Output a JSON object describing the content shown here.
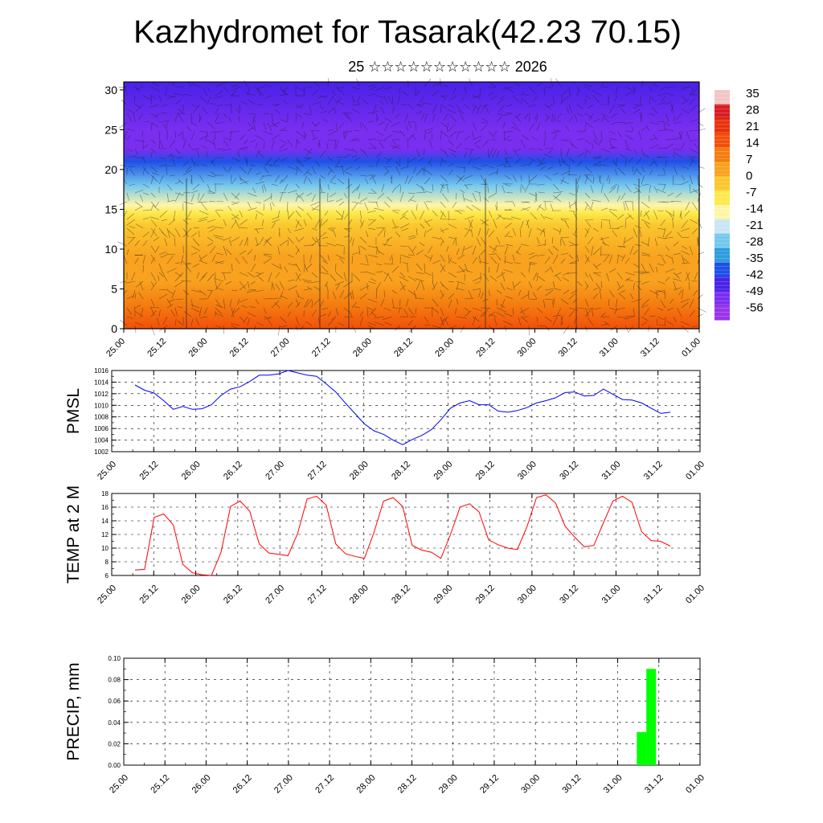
{
  "title": "Kazhydromet for Tasarak(42.23 70.15)",
  "subtitle": "25 ☆☆☆☆☆☆☆☆☆☆☆ 2026",
  "x_ticks": [
    "25.00",
    "25.12",
    "26.00",
    "26.12",
    "27.00",
    "27.12",
    "28.00",
    "28.12",
    "29.00",
    "29.12",
    "30.00",
    "30.12",
    "31.00",
    "31.12",
    "01.00"
  ],
  "chart_data": [
    {
      "type": "heatmap",
      "name": "vertical-temperature-wind",
      "xlabel": "",
      "ylabel": "",
      "ylim": [
        0,
        31
      ],
      "y_ticks": [
        "0",
        "5",
        "10",
        "15",
        "20",
        "25",
        "30"
      ],
      "colorbar": {
        "labels": [
          "35",
          "28",
          "21",
          "14",
          "7",
          "0",
          "-7",
          "-14",
          "-21",
          "-28",
          "-35",
          "-42",
          "-49",
          "-56"
        ],
        "colors": [
          "#f2c6c6",
          "#d81d20",
          "#e8320c",
          "#f2500a",
          "#f47d10",
          "#f8a21f",
          "#fbc72e",
          "#fde94a",
          "#fff5a8",
          "#c8e6f5",
          "#74c8ee",
          "#2f9cdd",
          "#1e50e6",
          "#4822e8",
          "#7a2ef0",
          "#9b35e8"
        ]
      },
      "temperature_profile": [
        {
          "height": 0,
          "value": 14
        },
        {
          "height": 3,
          "value": 9
        },
        {
          "height": 6,
          "value": 5
        },
        {
          "height": 9,
          "value": 1
        },
        {
          "height": 13,
          "value": -5
        },
        {
          "height": 14.5,
          "value": -11
        },
        {
          "height": 15.5,
          "value": -18
        },
        {
          "height": 18,
          "value": -30
        },
        {
          "height": 21,
          "value": -46
        },
        {
          "height": 22.5,
          "value": -56
        },
        {
          "height": 25,
          "value": -54
        },
        {
          "height": 31,
          "value": -50
        }
      ],
      "wind_overlay": "wind barbs"
    },
    {
      "type": "line",
      "name": "pmsl",
      "ylabel": "PMSL",
      "ylim": [
        1002,
        1016
      ],
      "y_ticks": [
        "1002",
        "1004",
        "1006",
        "1008",
        "1010",
        "1012",
        "1014",
        "1016"
      ],
      "color": "#0000ff",
      "values": [
        1013.5,
        1012.6,
        1012.1,
        1010.8,
        1009.3,
        1009.8,
        1009.3,
        1009.4,
        1010.1,
        1011.7,
        1012.8,
        1013.2,
        1014.1,
        1015.2,
        1015.2,
        1015.4,
        1016.0,
        1015.6,
        1015.2,
        1015.0,
        1013.7,
        1012.3,
        1010.4,
        1008.6,
        1006.8,
        1005.6,
        1005.0,
        1004.0,
        1003.2,
        1004.1,
        1004.8,
        1005.8,
        1007.5,
        1009.5,
        1010.4,
        1010.8,
        1010.1,
        1010.1,
        1009.0,
        1008.8,
        1009.1,
        1009.6,
        1010.4,
        1010.8,
        1011.3,
        1012.2,
        1012.3,
        1011.6,
        1011.7,
        1012.8,
        1011.9,
        1011.0,
        1010.9,
        1010.4,
        1009.5,
        1008.6,
        1008.8
      ]
    },
    {
      "type": "line",
      "name": "temp2m",
      "ylabel": "TEMP at 2 M",
      "ylim": [
        6,
        18
      ],
      "y_ticks": [
        "6",
        "8",
        "10",
        "12",
        "14",
        "16",
        "18"
      ],
      "color": "#ff0000",
      "values": [
        6.8,
        6.9,
        14.5,
        15.0,
        13.4,
        7.6,
        6.4,
        6.1,
        6.0,
        9.4,
        16.1,
        16.9,
        15.4,
        10.6,
        9.3,
        9.1,
        8.9,
        12.1,
        17.2,
        17.6,
        16.3,
        10.6,
        9.2,
        8.8,
        8.5,
        12.3,
        16.9,
        17.4,
        16.1,
        10.4,
        9.7,
        9.4,
        8.5,
        12.0,
        16.0,
        16.5,
        15.3,
        11.2,
        10.5,
        10.0,
        9.8,
        13.1,
        17.4,
        17.8,
        16.6,
        13.2,
        11.6,
        10.2,
        10.4,
        13.7,
        16.9,
        17.6,
        16.7,
        12.4,
        11.1,
        11.0,
        10.3
      ]
    },
    {
      "type": "bar",
      "name": "precip",
      "ylabel": "PRECIP, mm",
      "ylim": [
        0,
        0.1
      ],
      "y_ticks": [
        "0.00",
        "0.02",
        "0.04",
        "0.06",
        "0.08",
        "0.10"
      ],
      "color": "#00ff00",
      "bars": [
        {
          "t": 53,
          "value": 0.031
        },
        {
          "t": 54,
          "value": 0.09
        }
      ]
    }
  ]
}
